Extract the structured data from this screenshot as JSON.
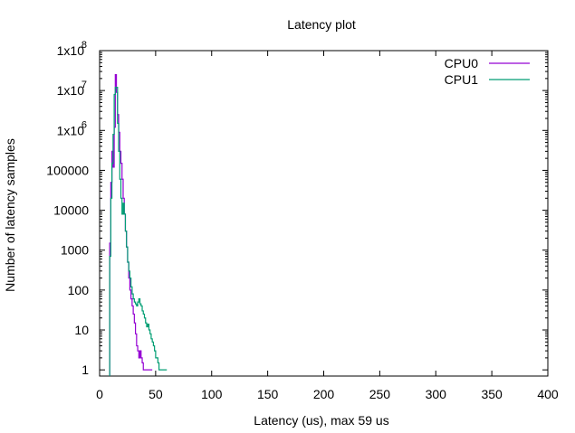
{
  "chart_data": {
    "type": "line",
    "title": "Latency plot",
    "xlabel": "Latency (us), max 59 us",
    "ylabel": "Number of latency samples",
    "xlim": [
      0,
      400
    ],
    "ylim": [
      0.7,
      100000000
    ],
    "yscale": "log",
    "x_ticks": [
      0,
      50,
      100,
      150,
      200,
      250,
      300,
      350,
      400
    ],
    "y_ticks": [
      {
        "value": 1,
        "label": "1",
        "sup": ""
      },
      {
        "value": 10,
        "label": "10",
        "sup": ""
      },
      {
        "value": 100,
        "label": "100",
        "sup": ""
      },
      {
        "value": 1000,
        "label": "1000",
        "sup": ""
      },
      {
        "value": 10000,
        "label": "10000",
        "sup": ""
      },
      {
        "value": 100000,
        "label": "100000",
        "sup": ""
      },
      {
        "value": 1000000,
        "label": "1x10",
        "sup": "6"
      },
      {
        "value": 10000000,
        "label": "1x10",
        "sup": "7"
      },
      {
        "value": 100000000,
        "label": "1x10",
        "sup": "8"
      }
    ],
    "grid": false,
    "legend_position": "top-right",
    "series": [
      {
        "name": "CPU0",
        "color": "#9400d3",
        "x": [
          9,
          10,
          11,
          12,
          13,
          14,
          15,
          16,
          17,
          18,
          19,
          20,
          21,
          22,
          23,
          24,
          25,
          26,
          27,
          28,
          29,
          30,
          31,
          32,
          33,
          34,
          35,
          36,
          37,
          38,
          39,
          40,
          41,
          42,
          43,
          44,
          45,
          46
        ],
        "y": [
          1500,
          50000,
          300000,
          120000,
          1200000,
          25000000,
          9000000,
          2500000,
          900000,
          300000,
          150000,
          60000,
          20000,
          8000,
          3000,
          1200,
          500,
          200,
          100,
          60,
          40,
          25,
          15,
          8,
          4,
          3,
          2,
          3,
          2,
          1.5,
          1,
          1,
          1,
          1,
          1,
          1,
          1,
          1
        ]
      },
      {
        "name": "CPU1",
        "color": "#009e73",
        "x": [
          9,
          10,
          11,
          12,
          13,
          14,
          15,
          16,
          17,
          18,
          19,
          20,
          21,
          22,
          23,
          24,
          25,
          26,
          27,
          28,
          29,
          30,
          31,
          32,
          33,
          34,
          35,
          36,
          37,
          38,
          39,
          40,
          41,
          42,
          43,
          44,
          45,
          46,
          47,
          48,
          49,
          50,
          51,
          52,
          53,
          54,
          55,
          56,
          57,
          58,
          59
        ],
        "y": [
          700,
          20000,
          150000,
          800000,
          8000000,
          12000000,
          12000000,
          1500000,
          300000,
          60000,
          20000,
          8000,
          15000,
          8000,
          3000,
          1200,
          500,
          300,
          200,
          120,
          80,
          60,
          50,
          45,
          40,
          50,
          60,
          45,
          40,
          30,
          25,
          20,
          15,
          12,
          14,
          10,
          8,
          6,
          5,
          4,
          3,
          2,
          2,
          1.5,
          1,
          1,
          1,
          1,
          1,
          1,
          1
        ]
      }
    ]
  }
}
